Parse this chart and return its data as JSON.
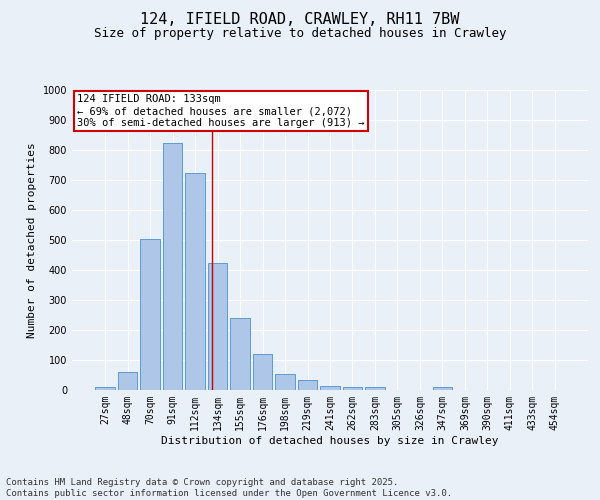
{
  "title": "124, IFIELD ROAD, CRAWLEY, RH11 7BW",
  "subtitle": "Size of property relative to detached houses in Crawley",
  "xlabel": "Distribution of detached houses by size in Crawley",
  "ylabel": "Number of detached properties",
  "categories": [
    "27sqm",
    "48sqm",
    "70sqm",
    "91sqm",
    "112sqm",
    "134sqm",
    "155sqm",
    "176sqm",
    "198sqm",
    "219sqm",
    "241sqm",
    "262sqm",
    "283sqm",
    "305sqm",
    "326sqm",
    "347sqm",
    "369sqm",
    "390sqm",
    "411sqm",
    "433sqm",
    "454sqm"
  ],
  "values": [
    10,
    60,
    505,
    825,
    725,
    425,
    240,
    120,
    55,
    35,
    15,
    10,
    10,
    0,
    0,
    10,
    0,
    0,
    0,
    0,
    0
  ],
  "bar_color": "#aec6e8",
  "bar_edge_color": "#5b9bd5",
  "background_color": "#eaf0f8",
  "grid_color": "#ffffff",
  "annotation_line1": "124 IFIELD ROAD: 133sqm",
  "annotation_line2": "← 69% of detached houses are smaller (2,072)",
  "annotation_line3": "30% of semi-detached houses are larger (913) →",
  "annotation_box_color": "#ffffff",
  "annotation_box_edge_color": "#cc0000",
  "vline_x_index": 4.75,
  "vline_color": "#cc0000",
  "ylim": [
    0,
    1000
  ],
  "yticks": [
    0,
    100,
    200,
    300,
    400,
    500,
    600,
    700,
    800,
    900,
    1000
  ],
  "footer_line1": "Contains HM Land Registry data © Crown copyright and database right 2025.",
  "footer_line2": "Contains public sector information licensed under the Open Government Licence v3.0.",
  "title_fontsize": 11,
  "subtitle_fontsize": 9,
  "axis_label_fontsize": 8,
  "tick_fontsize": 7,
  "annotation_fontsize": 7.5,
  "footer_fontsize": 6.5
}
